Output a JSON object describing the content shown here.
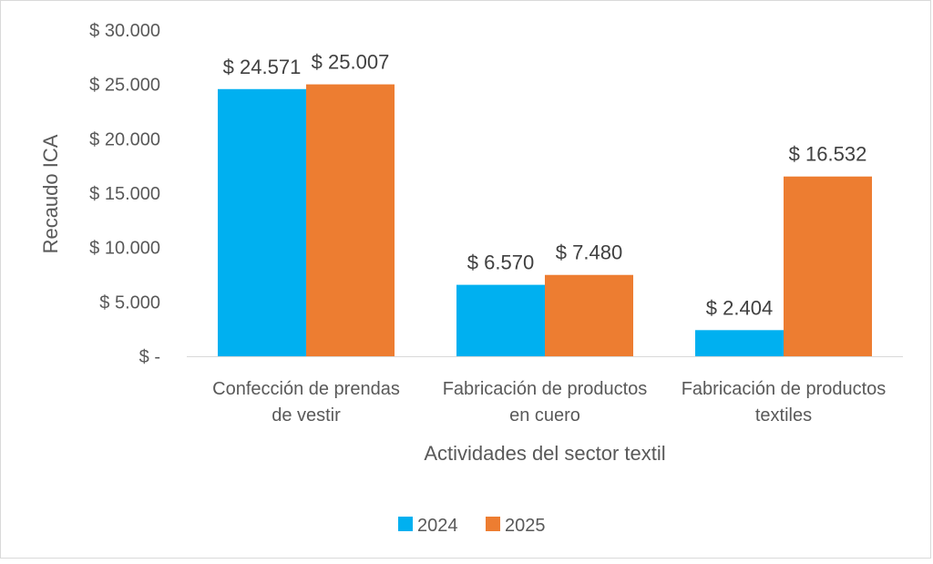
{
  "chart_data": {
    "type": "bar",
    "title": "",
    "xlabel": "Actividades del sector textil",
    "ylabel": "Recaudo ICA",
    "ylim": [
      0,
      30000
    ],
    "grid": false,
    "legend_position": "bottom",
    "y_ticks": [
      {
        "value": 0,
        "label": "$ -"
      },
      {
        "value": 5000,
        "label": "$ 5.000"
      },
      {
        "value": 10000,
        "label": "$ 10.000"
      },
      {
        "value": 15000,
        "label": "$ 15.000"
      },
      {
        "value": 20000,
        "label": "$ 20.000"
      },
      {
        "value": 25000,
        "label": "$ 25.000"
      },
      {
        "value": 30000,
        "label": "$ 30.000"
      }
    ],
    "categories": [
      [
        "Confección de prendas",
        "de vestir"
      ],
      [
        "Fabricación de productos",
        "en cuero"
      ],
      [
        "Fabricación de productos",
        "textiles"
      ]
    ],
    "series": [
      {
        "name": "2024",
        "color": "#00b0f0",
        "values": [
          24571,
          6570,
          2404
        ],
        "labels": [
          "$ 24.571",
          "$ 6.570",
          "$ 2.404"
        ]
      },
      {
        "name": "2025",
        "color": "#ed7d31",
        "values": [
          25007,
          7480,
          16532
        ],
        "labels": [
          "$ 25.007",
          "$ 7.480",
          "$ 16.532"
        ]
      }
    ]
  }
}
